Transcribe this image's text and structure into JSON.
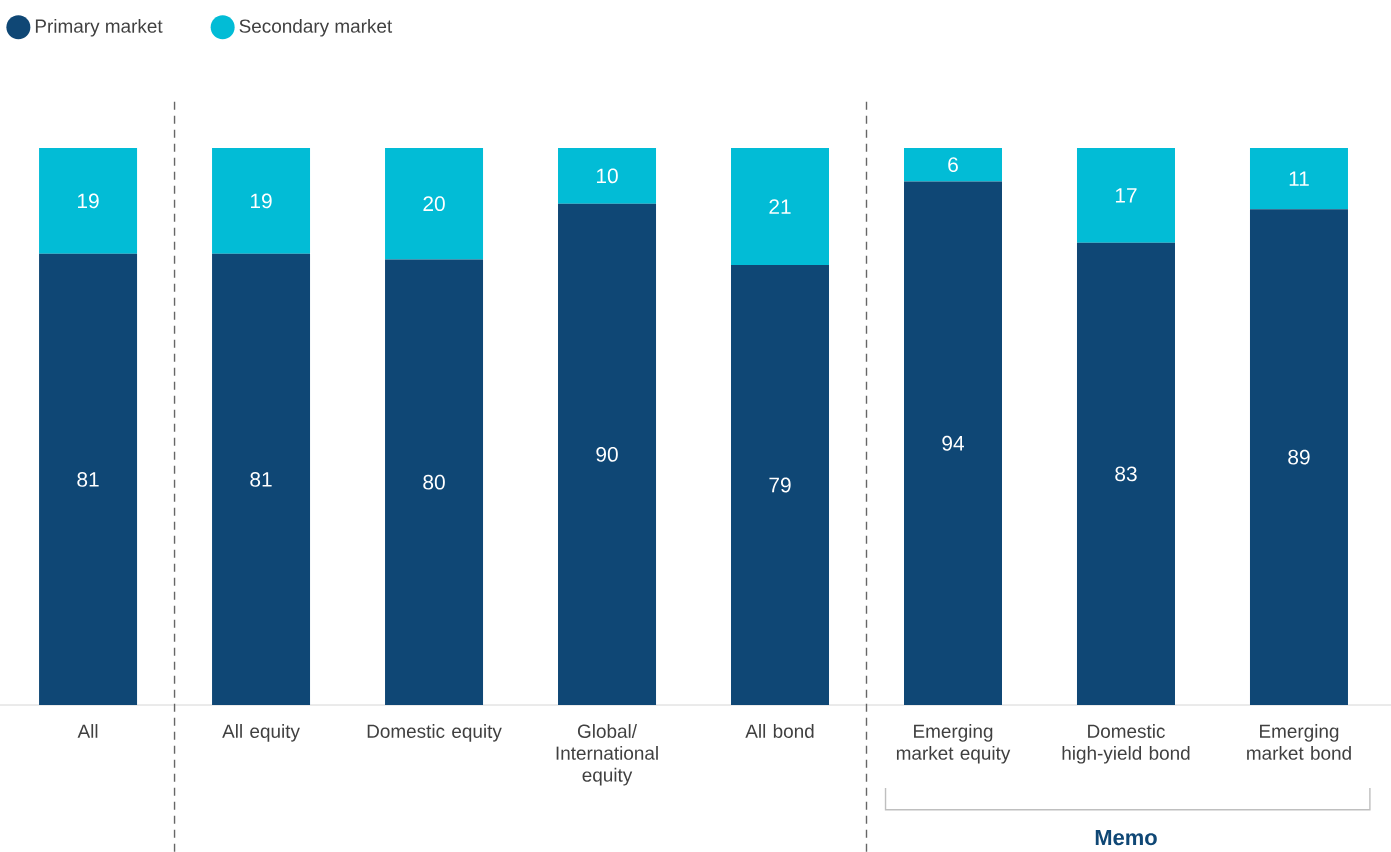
{
  "chart_data": {
    "type": "bar",
    "stacked": true,
    "data_labels": true,
    "legend": "top left",
    "categories": [
      "All",
      "All equity",
      "Domestic equity",
      "Global/ International equity",
      "All bond",
      "Emerging market equity",
      "Domestic high-yield bond",
      "Emerging market bond"
    ],
    "series": [
      {
        "name": "Primary market",
        "color": "#0f4775",
        "values": [
          81,
          81,
          80,
          90,
          79,
          94,
          83,
          89
        ]
      },
      {
        "name": "Secondary market",
        "color": "#02bcd6",
        "values": [
          19,
          19,
          20,
          10,
          21,
          6,
          17,
          11
        ]
      }
    ],
    "annotations": [
      "Memo"
    ]
  }
}
